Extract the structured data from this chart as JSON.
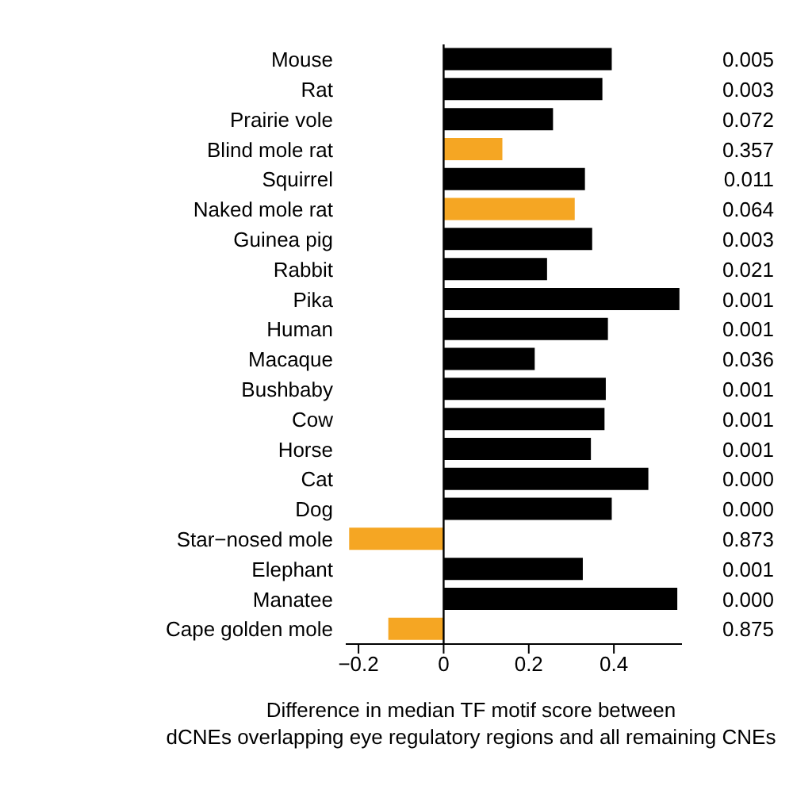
{
  "chart_data": {
    "type": "bar",
    "orientation": "horizontal",
    "xlabel": "Difference in median TF motif score between\ndCNEs overlapping eye regulatory regions and all remaining CNEs",
    "categories": [
      "Mouse",
      "Rat",
      "Prairie vole",
      "Blind mole rat",
      "Squirrel",
      "Naked mole rat",
      "Guinea pig",
      "Rabbit",
      "Pika",
      "Human",
      "Macaque",
      "Bushbaby",
      "Cow",
      "Horse",
      "Cat",
      "Dog",
      "Star−nosed mole",
      "Elephant",
      "Manatee",
      "Cape golden mole"
    ],
    "values": [
      0.395,
      0.373,
      0.257,
      0.138,
      0.332,
      0.308,
      0.349,
      0.243,
      0.554,
      0.386,
      0.214,
      0.381,
      0.378,
      0.346,
      0.481,
      0.395,
      -0.222,
      0.327,
      0.549,
      -0.13
    ],
    "colors": [
      "#000000",
      "#000000",
      "#000000",
      "#f5a623",
      "#000000",
      "#f5a623",
      "#000000",
      "#000000",
      "#000000",
      "#000000",
      "#000000",
      "#000000",
      "#000000",
      "#000000",
      "#000000",
      "#000000",
      "#f5a623",
      "#000000",
      "#000000",
      "#f5a623"
    ],
    "xlim": [
      -0.23,
      0.56
    ],
    "xticks": [
      {
        "value": -0.2,
        "label": "−0.2"
      },
      0,
      0.2,
      0.4
    ],
    "ref_lines": [
      {
        "axis": "x",
        "value": 0
      }
    ],
    "annotations": [
      "0.005",
      "0.003",
      "0.072",
      "0.357",
      "0.011",
      "0.064",
      "0.003",
      "0.021",
      "0.001",
      "0.001",
      "0.036",
      "0.001",
      "0.001",
      "0.001",
      "0.000",
      "0.000",
      "0.873",
      "0.001",
      "0.000",
      "0.875"
    ]
  }
}
